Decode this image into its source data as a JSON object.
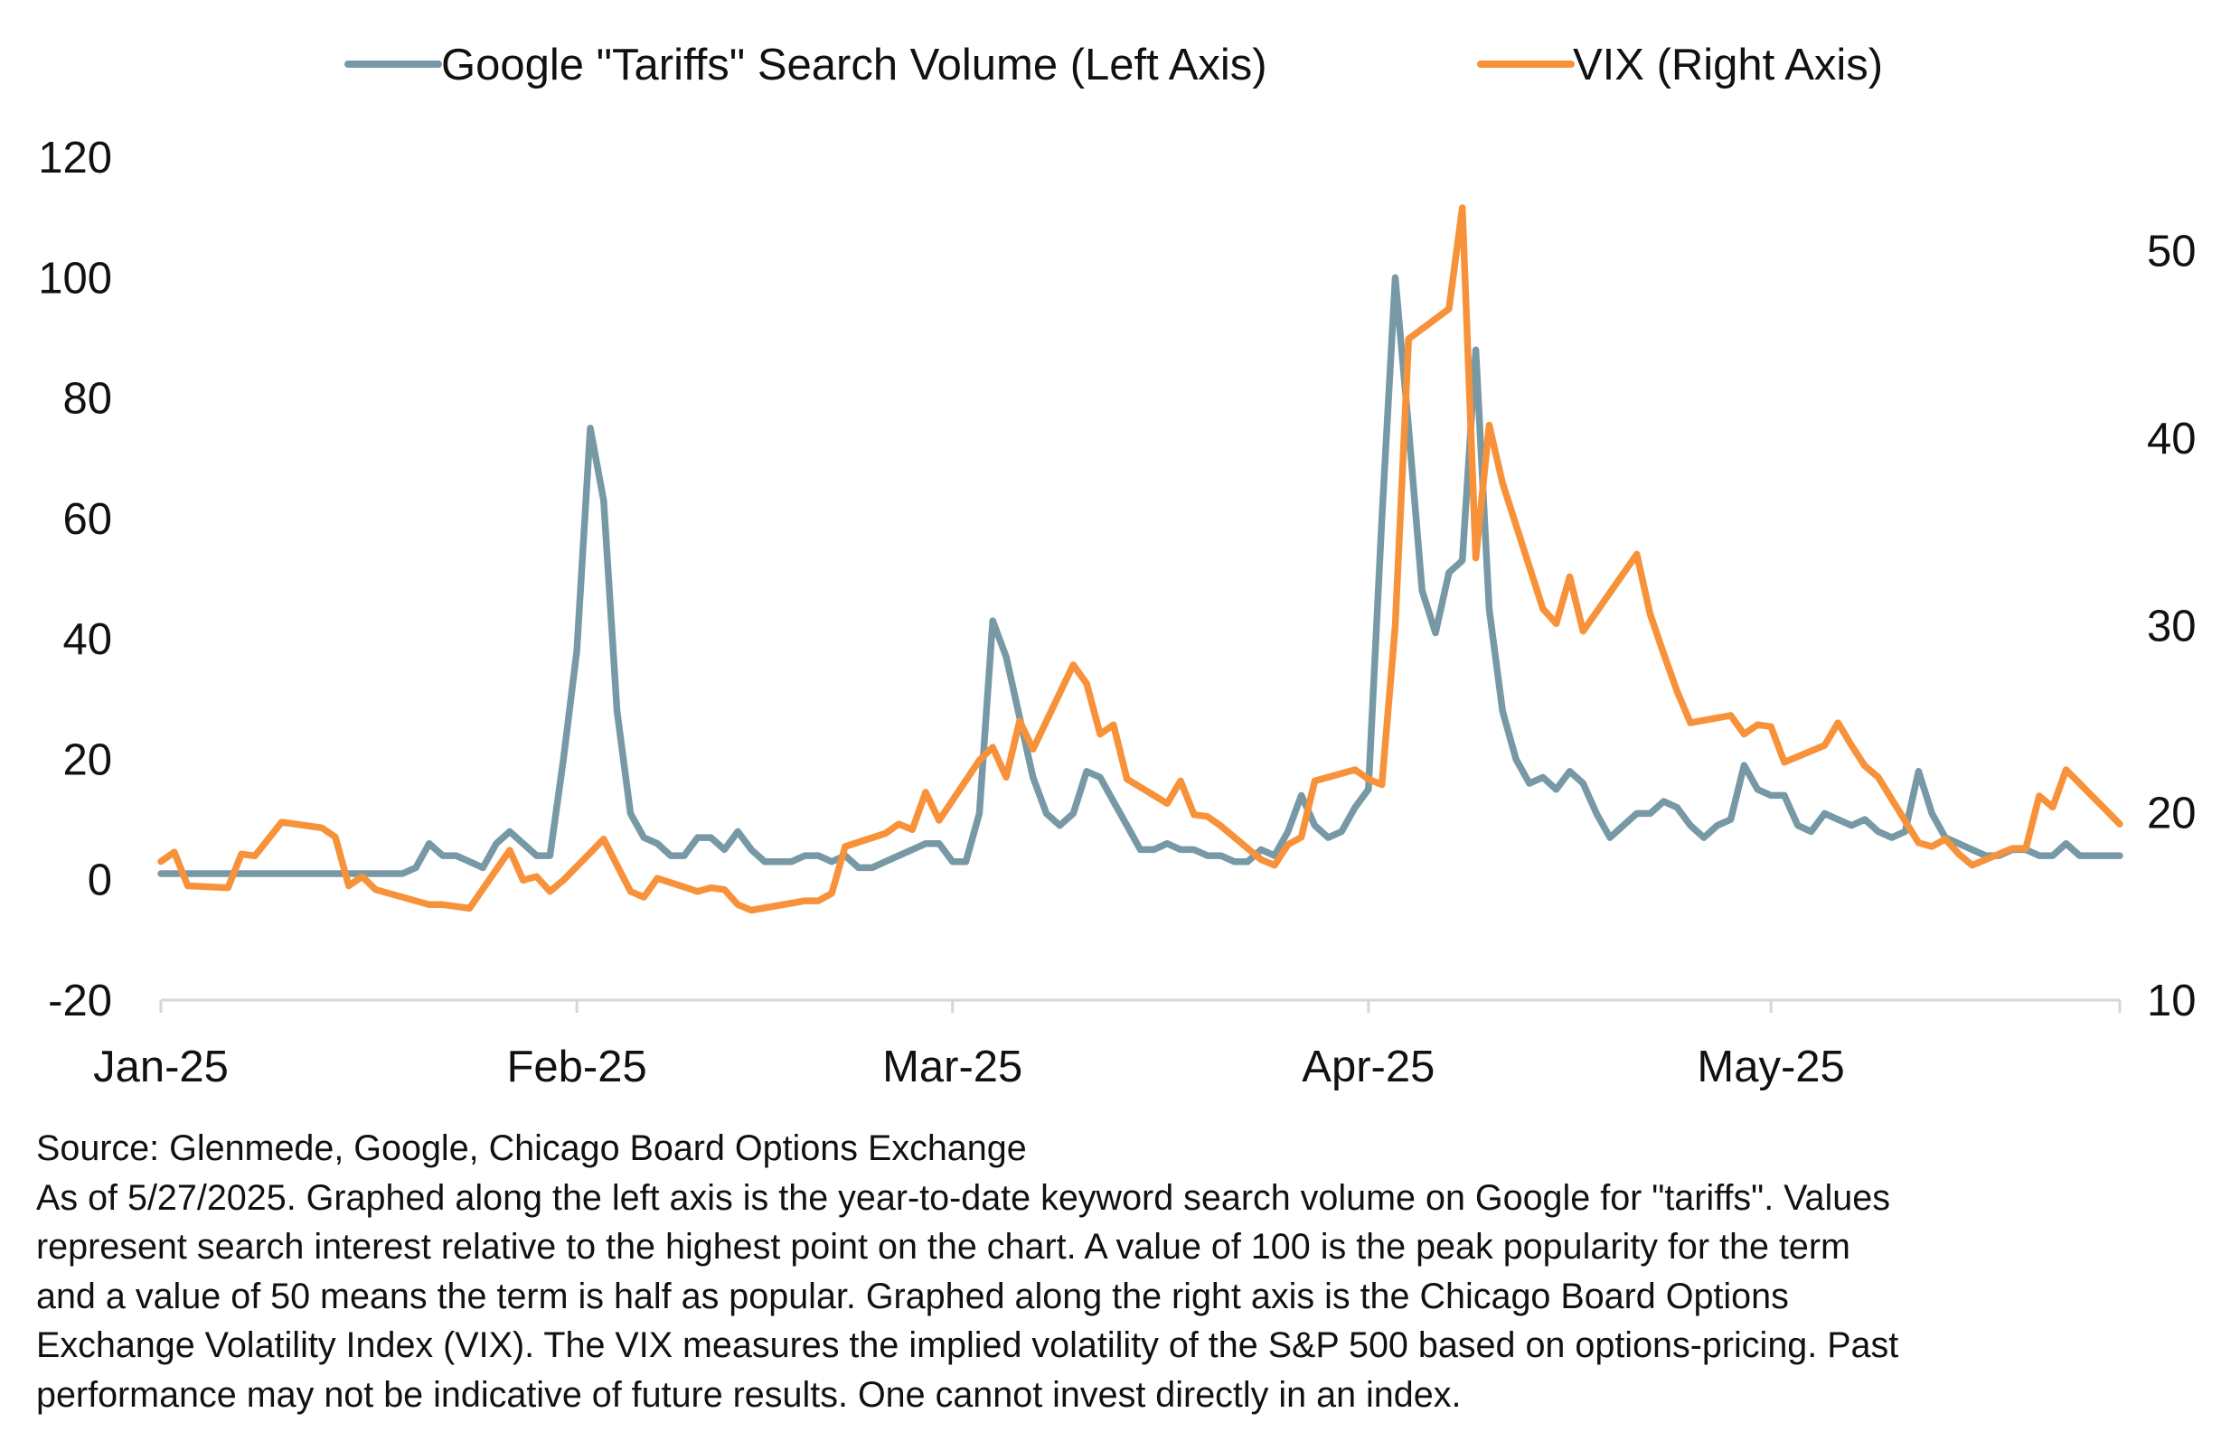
{
  "chart_data": {
    "type": "line",
    "x_axis": {
      "tick_labels": [
        "Jan-25",
        "Feb-25",
        "Mar-25",
        "Apr-25",
        "May-25"
      ],
      "tick_dates": [
        "2025-01-01",
        "2025-02-01",
        "2025-03-01",
        "2025-04-01",
        "2025-05-01"
      ],
      "range": [
        "2025-01-01",
        "2025-05-27"
      ]
    },
    "y_left": {
      "min": -20,
      "max": 120,
      "tick_labels": [
        "-20",
        "0",
        "20",
        "40",
        "60",
        "80",
        "100",
        "120"
      ],
      "tick_values": [
        -20,
        0,
        20,
        40,
        60,
        80,
        100,
        120
      ]
    },
    "y_right": {
      "min": 10,
      "max": 55,
      "tick_labels": [
        "10",
        "20",
        "30",
        "40",
        "50"
      ],
      "tick_values": [
        10,
        20,
        30,
        40,
        50
      ]
    },
    "grid": false,
    "legend_position": "top-center",
    "series": [
      {
        "name": "Google \"Tariffs\" Search Volume (Left Axis)",
        "axis": "left",
        "color": "#7799a6",
        "points": [
          [
            "2025-01-01",
            1
          ],
          [
            "2025-01-02",
            1
          ],
          [
            "2025-01-03",
            1
          ],
          [
            "2025-01-04",
            1
          ],
          [
            "2025-01-05",
            1
          ],
          [
            "2025-01-06",
            1
          ],
          [
            "2025-01-07",
            1
          ],
          [
            "2025-01-08",
            1
          ],
          [
            "2025-01-09",
            1
          ],
          [
            "2025-01-10",
            1
          ],
          [
            "2025-01-11",
            1
          ],
          [
            "2025-01-12",
            1
          ],
          [
            "2025-01-13",
            1
          ],
          [
            "2025-01-14",
            1
          ],
          [
            "2025-01-15",
            1
          ],
          [
            "2025-01-16",
            1
          ],
          [
            "2025-01-17",
            1
          ],
          [
            "2025-01-18",
            1
          ],
          [
            "2025-01-19",
            1
          ],
          [
            "2025-01-20",
            2
          ],
          [
            "2025-01-21",
            6
          ],
          [
            "2025-01-22",
            4
          ],
          [
            "2025-01-23",
            4
          ],
          [
            "2025-01-24",
            3
          ],
          [
            "2025-01-25",
            2
          ],
          [
            "2025-01-26",
            6
          ],
          [
            "2025-01-27",
            8
          ],
          [
            "2025-01-28",
            6
          ],
          [
            "2025-01-29",
            4
          ],
          [
            "2025-01-30",
            4
          ],
          [
            "2025-01-31",
            20
          ],
          [
            "2025-02-01",
            38
          ],
          [
            "2025-02-02",
            75
          ],
          [
            "2025-02-03",
            63
          ],
          [
            "2025-02-04",
            28
          ],
          [
            "2025-02-05",
            11
          ],
          [
            "2025-02-06",
            7
          ],
          [
            "2025-02-07",
            6
          ],
          [
            "2025-02-08",
            4
          ],
          [
            "2025-02-09",
            4
          ],
          [
            "2025-02-10",
            7
          ],
          [
            "2025-02-11",
            7
          ],
          [
            "2025-02-12",
            5
          ],
          [
            "2025-02-13",
            8
          ],
          [
            "2025-02-14",
            5
          ],
          [
            "2025-02-15",
            3
          ],
          [
            "2025-02-16",
            3
          ],
          [
            "2025-02-17",
            3
          ],
          [
            "2025-02-18",
            4
          ],
          [
            "2025-02-19",
            4
          ],
          [
            "2025-02-20",
            3
          ],
          [
            "2025-02-21",
            4
          ],
          [
            "2025-02-22",
            2
          ],
          [
            "2025-02-23",
            2
          ],
          [
            "2025-02-24",
            3
          ],
          [
            "2025-02-25",
            4
          ],
          [
            "2025-02-26",
            5
          ],
          [
            "2025-02-27",
            6
          ],
          [
            "2025-02-28",
            6
          ],
          [
            "2025-03-01",
            3
          ],
          [
            "2025-03-02",
            3
          ],
          [
            "2025-03-03",
            11
          ],
          [
            "2025-03-04",
            43
          ],
          [
            "2025-03-05",
            37
          ],
          [
            "2025-03-06",
            27
          ],
          [
            "2025-03-07",
            17
          ],
          [
            "2025-03-08",
            11
          ],
          [
            "2025-03-09",
            9
          ],
          [
            "2025-03-10",
            11
          ],
          [
            "2025-03-11",
            18
          ],
          [
            "2025-03-12",
            17
          ],
          [
            "2025-03-13",
            13
          ],
          [
            "2025-03-14",
            9
          ],
          [
            "2025-03-15",
            5
          ],
          [
            "2025-03-16",
            5
          ],
          [
            "2025-03-17",
            6
          ],
          [
            "2025-03-18",
            5
          ],
          [
            "2025-03-19",
            5
          ],
          [
            "2025-03-20",
            4
          ],
          [
            "2025-03-21",
            4
          ],
          [
            "2025-03-22",
            3
          ],
          [
            "2025-03-23",
            3
          ],
          [
            "2025-03-24",
            5
          ],
          [
            "2025-03-25",
            4
          ],
          [
            "2025-03-26",
            8
          ],
          [
            "2025-03-27",
            14
          ],
          [
            "2025-03-28",
            9
          ],
          [
            "2025-03-29",
            7
          ],
          [
            "2025-03-30",
            8
          ],
          [
            "2025-03-31",
            12
          ],
          [
            "2025-04-01",
            15
          ],
          [
            "2025-04-02",
            60
          ],
          [
            "2025-04-03",
            100
          ],
          [
            "2025-04-04",
            75
          ],
          [
            "2025-04-05",
            48
          ],
          [
            "2025-04-06",
            41
          ],
          [
            "2025-04-07",
            51
          ],
          [
            "2025-04-08",
            53
          ],
          [
            "2025-04-09",
            88
          ],
          [
            "2025-04-10",
            45
          ],
          [
            "2025-04-11",
            28
          ],
          [
            "2025-04-12",
            20
          ],
          [
            "2025-04-13",
            16
          ],
          [
            "2025-04-14",
            17
          ],
          [
            "2025-04-15",
            15
          ],
          [
            "2025-04-16",
            18
          ],
          [
            "2025-04-17",
            16
          ],
          [
            "2025-04-18",
            11
          ],
          [
            "2025-04-19",
            7
          ],
          [
            "2025-04-20",
            9
          ],
          [
            "2025-04-21",
            11
          ],
          [
            "2025-04-22",
            11
          ],
          [
            "2025-04-23",
            13
          ],
          [
            "2025-04-24",
            12
          ],
          [
            "2025-04-25",
            9
          ],
          [
            "2025-04-26",
            7
          ],
          [
            "2025-04-27",
            9
          ],
          [
            "2025-04-28",
            10
          ],
          [
            "2025-04-29",
            19
          ],
          [
            "2025-04-30",
            15
          ],
          [
            "2025-05-01",
            14
          ],
          [
            "2025-05-02",
            14
          ],
          [
            "2025-05-03",
            9
          ],
          [
            "2025-05-04",
            8
          ],
          [
            "2025-05-05",
            11
          ],
          [
            "2025-05-06",
            10
          ],
          [
            "2025-05-07",
            9
          ],
          [
            "2025-05-08",
            10
          ],
          [
            "2025-05-09",
            8
          ],
          [
            "2025-05-10",
            7
          ],
          [
            "2025-05-11",
            8
          ],
          [
            "2025-05-12",
            18
          ],
          [
            "2025-05-13",
            11
          ],
          [
            "2025-05-14",
            7
          ],
          [
            "2025-05-15",
            6
          ],
          [
            "2025-05-16",
            5
          ],
          [
            "2025-05-17",
            4
          ],
          [
            "2025-05-18",
            4
          ],
          [
            "2025-05-19",
            5
          ],
          [
            "2025-05-20",
            5
          ],
          [
            "2025-05-21",
            4
          ],
          [
            "2025-05-22",
            4
          ],
          [
            "2025-05-23",
            6
          ],
          [
            "2025-05-24",
            4
          ],
          [
            "2025-05-25",
            4
          ],
          [
            "2025-05-26",
            4
          ],
          [
            "2025-05-27",
            4
          ]
        ]
      },
      {
        "name": "VIX (Right Axis)",
        "axis": "right",
        "color": "#f7923a",
        "points": [
          [
            "2025-01-01",
            17.4
          ],
          [
            "2025-01-02",
            17.9
          ],
          [
            "2025-01-03",
            16.1
          ],
          [
            "2025-01-06",
            16.0
          ],
          [
            "2025-01-07",
            17.8
          ],
          [
            "2025-01-08",
            17.7
          ],
          [
            "2025-01-10",
            19.5
          ],
          [
            "2025-01-13",
            19.2
          ],
          [
            "2025-01-14",
            18.7
          ],
          [
            "2025-01-15",
            16.1
          ],
          [
            "2025-01-16",
            16.6
          ],
          [
            "2025-01-17",
            15.9
          ],
          [
            "2025-01-21",
            15.1
          ],
          [
            "2025-01-22",
            15.1
          ],
          [
            "2025-01-23",
            15.0
          ],
          [
            "2025-01-24",
            14.9
          ],
          [
            "2025-01-27",
            18.0
          ],
          [
            "2025-01-28",
            16.4
          ],
          [
            "2025-01-29",
            16.6
          ],
          [
            "2025-01-30",
            15.8
          ],
          [
            "2025-01-31",
            16.4
          ],
          [
            "2025-02-03",
            18.6
          ],
          [
            "2025-02-04",
            17.2
          ],
          [
            "2025-02-05",
            15.8
          ],
          [
            "2025-02-06",
            15.5
          ],
          [
            "2025-02-07",
            16.5
          ],
          [
            "2025-02-10",
            15.8
          ],
          [
            "2025-02-11",
            16.0
          ],
          [
            "2025-02-12",
            15.9
          ],
          [
            "2025-02-13",
            15.1
          ],
          [
            "2025-02-14",
            14.8
          ],
          [
            "2025-02-18",
            15.3
          ],
          [
            "2025-02-19",
            15.3
          ],
          [
            "2025-02-20",
            15.7
          ],
          [
            "2025-02-21",
            18.2
          ],
          [
            "2025-02-24",
            18.9
          ],
          [
            "2025-02-25",
            19.4
          ],
          [
            "2025-02-26",
            19.1
          ],
          [
            "2025-02-27",
            21.1
          ],
          [
            "2025-02-28",
            19.6
          ],
          [
            "2025-03-03",
            22.8
          ],
          [
            "2025-03-04",
            23.5
          ],
          [
            "2025-03-05",
            21.9
          ],
          [
            "2025-03-06",
            24.9
          ],
          [
            "2025-03-07",
            23.4
          ],
          [
            "2025-03-10",
            27.9
          ],
          [
            "2025-03-11",
            26.9
          ],
          [
            "2025-03-12",
            24.2
          ],
          [
            "2025-03-13",
            24.7
          ],
          [
            "2025-03-14",
            21.8
          ],
          [
            "2025-03-17",
            20.5
          ],
          [
            "2025-03-18",
            21.7
          ],
          [
            "2025-03-19",
            19.9
          ],
          [
            "2025-03-20",
            19.8
          ],
          [
            "2025-03-21",
            19.3
          ],
          [
            "2025-03-24",
            17.5
          ],
          [
            "2025-03-25",
            17.2
          ],
          [
            "2025-03-26",
            18.3
          ],
          [
            "2025-03-27",
            18.7
          ],
          [
            "2025-03-28",
            21.7
          ],
          [
            "2025-03-31",
            22.3
          ],
          [
            "2025-04-01",
            21.8
          ],
          [
            "2025-04-02",
            21.5
          ],
          [
            "2025-04-03",
            30.0
          ],
          [
            "2025-04-04",
            45.3
          ],
          [
            "2025-04-07",
            46.9
          ],
          [
            "2025-04-08",
            52.3
          ],
          [
            "2025-04-09",
            33.6
          ],
          [
            "2025-04-10",
            40.7
          ],
          [
            "2025-04-11",
            37.6
          ],
          [
            "2025-04-14",
            30.9
          ],
          [
            "2025-04-15",
            30.1
          ],
          [
            "2025-04-16",
            32.6
          ],
          [
            "2025-04-17",
            29.7
          ],
          [
            "2025-04-21",
            33.8
          ],
          [
            "2025-04-22",
            30.6
          ],
          [
            "2025-04-23",
            28.5
          ],
          [
            "2025-04-24",
            26.5
          ],
          [
            "2025-04-25",
            24.8
          ],
          [
            "2025-04-28",
            25.2
          ],
          [
            "2025-04-29",
            24.2
          ],
          [
            "2025-04-30",
            24.7
          ],
          [
            "2025-05-01",
            24.6
          ],
          [
            "2025-05-02",
            22.7
          ],
          [
            "2025-05-05",
            23.6
          ],
          [
            "2025-05-06",
            24.8
          ],
          [
            "2025-05-07",
            23.6
          ],
          [
            "2025-05-08",
            22.5
          ],
          [
            "2025-05-09",
            21.9
          ],
          [
            "2025-05-12",
            18.4
          ],
          [
            "2025-05-13",
            18.2
          ],
          [
            "2025-05-14",
            18.6
          ],
          [
            "2025-05-15",
            17.8
          ],
          [
            "2025-05-16",
            17.2
          ],
          [
            "2025-05-19",
            18.1
          ],
          [
            "2025-05-20",
            18.1
          ],
          [
            "2025-05-21",
            20.9
          ],
          [
            "2025-05-22",
            20.3
          ],
          [
            "2025-05-23",
            22.3
          ],
          [
            "2025-05-27",
            19.4
          ]
        ]
      }
    ]
  },
  "footnote": {
    "source": "Source: Glenmede, Google, Chicago Board Options Exchange",
    "lines": [
      "As of 5/27/2025. Graphed along the left axis is the year-to-date keyword search volume on Google for  \"tariffs\". Values",
      "represent search interest relative to the highest point on the chart. A value of 100 is the peak popularity for the term",
      "and a value of 50 means the term is half as popular. Graphed along the right axis is the Chicago Board Options",
      "Exchange Volatility Index (VIX). The VIX measures the implied volatility of the S&P 500 based on options-pricing. Past",
      "performance may not be indicative of future results. One cannot invest directly in an index."
    ]
  }
}
